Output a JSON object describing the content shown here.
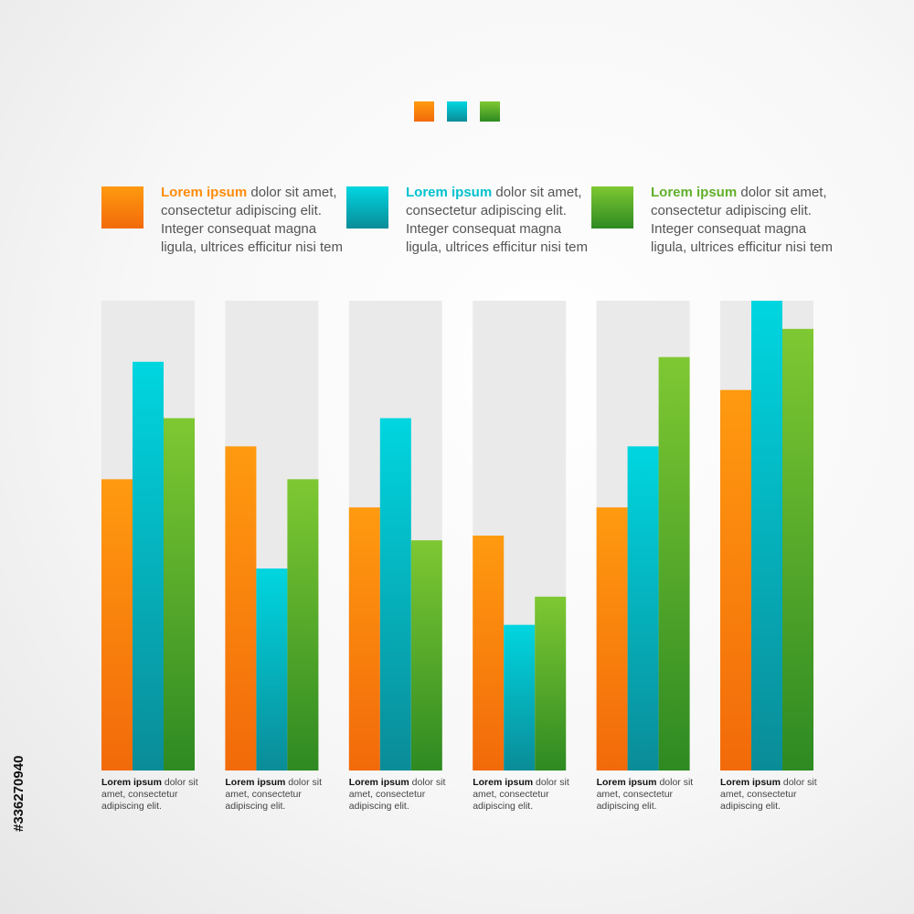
{
  "colors": {
    "orange": "#ff8c0c",
    "cyan": "#00c2cf",
    "green": "#62b02c",
    "panel": "#eaeaea"
  },
  "legend": [
    {
      "highlight": "Lorem ipsum",
      "text": " dolor sit amet, consectetur adipiscing elit. Integer consequat magna ligula, ultrices efficitur nisi tem",
      "color": "orange"
    },
    {
      "highlight": "Lorem ipsum",
      "text": " dolor sit amet, consectetur adipiscing elit. Integer consequat magna ligula, ultrices efficitur nisi tem",
      "color": "cyan"
    },
    {
      "highlight": "Lorem ipsum",
      "text": " dolor sit amet, consectetur adipiscing elit. Integer consequat magna ligula, ultrices efficitur nisi tem",
      "color": "green"
    }
  ],
  "captions": [
    {
      "bold": "Lorem ipsum",
      "text": " dolor sit amet, consectetur adipiscing elit."
    },
    {
      "bold": "Lorem ipsum",
      "text": " dolor sit amet, consectetur adipiscing elit."
    },
    {
      "bold": "Lorem ipsum",
      "text": " dolor sit amet, consectetur adipiscing elit."
    },
    {
      "bold": "Lorem ipsum",
      "text": " dolor sit amet, consectetur adipiscing elit."
    },
    {
      "bold": "Lorem ipsum",
      "text": " dolor sit amet, consectetur adipiscing elit."
    },
    {
      "bold": "Lorem ipsum",
      "text": " dolor sit amet, consectetur adipiscing elit."
    }
  ],
  "stock_id": "#336270940",
  "chart_data": {
    "type": "bar",
    "categories": [
      "",
      "",
      "",
      "",
      "",
      ""
    ],
    "ylim": [
      0,
      100
    ],
    "grid": false,
    "legend": "top",
    "series": [
      {
        "color": "orange",
        "values": [
          62,
          69,
          56,
          50,
          56,
          81
        ]
      },
      {
        "color": "cyan",
        "values": [
          87,
          43,
          75,
          31,
          69,
          100
        ]
      },
      {
        "color": "green",
        "values": [
          75,
          62,
          49,
          37,
          88,
          94
        ]
      }
    ]
  }
}
